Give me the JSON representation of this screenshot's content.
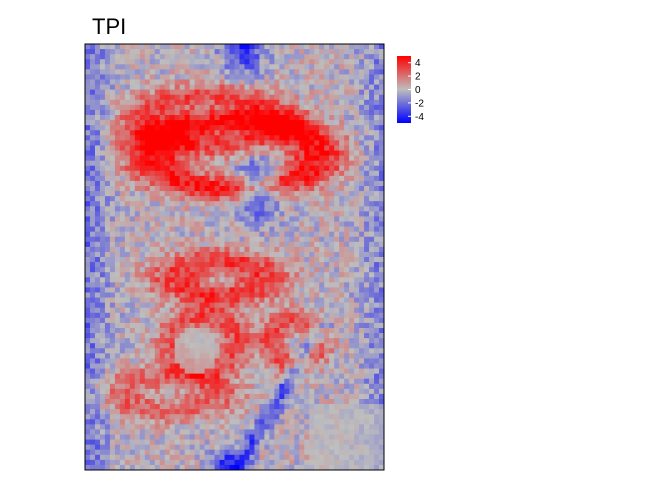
{
  "chart_data": {
    "type": "heatmap",
    "title": "TPI",
    "xlabel": "",
    "ylabel": "",
    "legend_placement": "right",
    "value_range": [
      -5,
      5
    ],
    "colormap": [
      "#0000ff",
      "#bebebe",
      "#ff0000"
    ],
    "legend": {
      "ticks": [
        4,
        2,
        0,
        -2,
        -4
      ],
      "tick_labels": [
        "4",
        "2",
        "0",
        "-2",
        "-4"
      ]
    },
    "grid": {
      "cols": 60,
      "rows": 84
    },
    "features": [
      {
        "kind": "ridge",
        "cx": 0.5,
        "cy": 0.26,
        "rx": 0.28,
        "ry": 0.08,
        "w": 0.03,
        "amp": 4.5
      },
      {
        "kind": "ridge",
        "cx": 0.42,
        "cy": 0.18,
        "rx": 0.22,
        "ry": 0.06,
        "w": 0.03,
        "amp": 3.0
      },
      {
        "kind": "blob",
        "cx": 0.58,
        "cy": 0.34,
        "r": 0.07,
        "amp": -4.0
      },
      {
        "kind": "ridge",
        "cx": 0.45,
        "cy": 0.55,
        "rx": 0.14,
        "ry": 0.04,
        "w": 0.03,
        "amp": 3.5
      },
      {
        "kind": "ridge",
        "cx": 0.4,
        "cy": 0.7,
        "rx": 0.11,
        "ry": 0.06,
        "w": 0.03,
        "amp": 3.0
      },
      {
        "kind": "ridge",
        "cx": 0.7,
        "cy": 0.7,
        "rx": 0.08,
        "ry": 0.05,
        "w": 0.03,
        "amp": 3.0
      },
      {
        "kind": "ridge",
        "cx": 0.28,
        "cy": 0.82,
        "rx": 0.15,
        "ry": 0.04,
        "w": 0.03,
        "amp": 2.5
      },
      {
        "kind": "blob",
        "cx": 0.53,
        "cy": 0.0,
        "r": 0.07,
        "amp": -4.0
      },
      {
        "kind": "blob",
        "cx": 0.48,
        "cy": 1.0,
        "r": 0.05,
        "amp": -4.5
      },
      {
        "kind": "edge",
        "side": "left",
        "amp": -2.0
      },
      {
        "kind": "edge",
        "side": "right",
        "amp": -1.5
      },
      {
        "kind": "diag",
        "amp": -3.0
      }
    ]
  }
}
